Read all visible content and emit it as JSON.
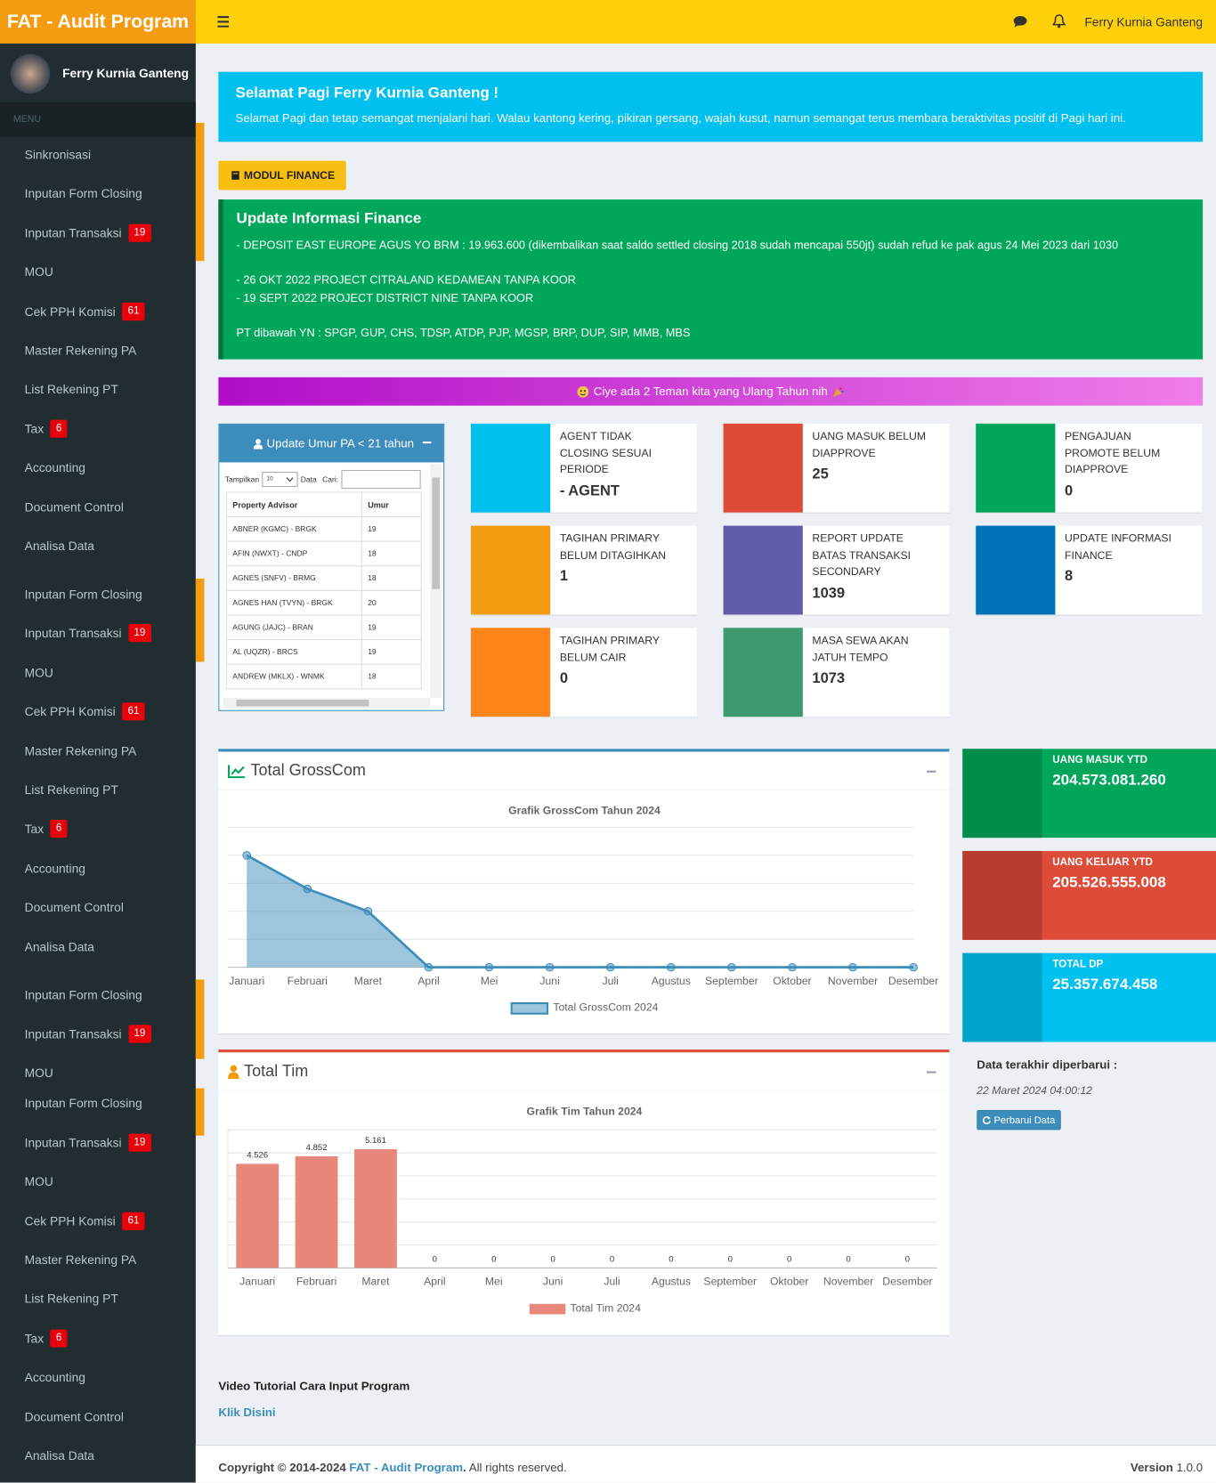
{
  "header": {
    "brand": "FAT - Audit Program",
    "user": "Ferry Kurnia Ganteng"
  },
  "sidebar": {
    "user": "Ferry Kurnia Ganteng",
    "menu_label": "MENU",
    "groups": [
      {
        "items": [
          {
            "label": "Sinkronisasi",
            "arrow": true
          },
          {
            "label": "Inputan Form Closing"
          },
          {
            "label": "Inputan Transaksi",
            "badge": 19,
            "arrow": true
          },
          {
            "label": "MOU",
            "arrow": true
          },
          {
            "label": "Cek PPH Komisi",
            "badge": 61
          },
          {
            "label": "Master Rekening PA"
          },
          {
            "label": "List Rekening PT"
          },
          {
            "label": "Tax",
            "badge": 6,
            "arrow": true
          },
          {
            "label": "Accounting",
            "arrow": true
          },
          {
            "label": "Document Control",
            "arrow": true
          },
          {
            "label": "Analisa Data",
            "arrow": true
          }
        ]
      },
      {
        "items": [
          {
            "label": "Inputan Form Closing"
          },
          {
            "label": "Inputan Transaksi",
            "badge": 19,
            "arrow": true
          },
          {
            "label": "MOU",
            "arrow": true
          },
          {
            "label": "Cek PPH Komisi",
            "badge": 61
          },
          {
            "label": "Master Rekening PA"
          },
          {
            "label": "List Rekening PT"
          },
          {
            "label": "Tax",
            "badge": 6,
            "arrow": true
          },
          {
            "label": "Accounting",
            "arrow": true
          },
          {
            "label": "Document Control",
            "arrow": true
          },
          {
            "label": "Analisa Data",
            "arrow": true
          }
        ]
      },
      {
        "items": [
          {
            "label": "Inputan Form Closing"
          },
          {
            "label": "Inputan Transaksi",
            "badge": 19,
            "arrow": true
          },
          {
            "label": "MOU",
            "arrow": true
          }
        ]
      },
      {
        "items": [
          {
            "label": "Inputan Form Closing"
          },
          {
            "label": "Inputan Transaksi",
            "badge": 19,
            "arrow": true
          },
          {
            "label": "MOU",
            "arrow": true
          },
          {
            "label": "Cek PPH Komisi",
            "badge": 61
          },
          {
            "label": "Master Rekening PA"
          },
          {
            "label": "List Rekening PT"
          },
          {
            "label": "Tax",
            "badge": 6,
            "arrow": true
          },
          {
            "label": "Accounting",
            "arrow": true
          },
          {
            "label": "Document Control",
            "arrow": true
          },
          {
            "label": "Analisa Data",
            "arrow": true
          }
        ]
      }
    ]
  },
  "welcome": {
    "title": "Selamat Pagi Ferry Kurnia Ganteng !",
    "text": "Selamat Pagi dan tetap semangat menjalani hari. Walau kantong kering, pikiran gersang, wajah kusut, namun semangat terus membara beraktivitas positif di Pagi hari ini."
  },
  "module_button": "MODUL FINANCE",
  "finance_info": {
    "title": "Update Informasi Finance",
    "paragraphs": [
      [
        "- DEPOSIT EAST EUROPE AGUS YO BRM : 19.963.600 (dikembalikan saat saldo settled closing 2018 sudah mencapai 550jt) sudah refud ke pak agus 24 Mei 2023 dari 1030"
      ],
      [
        "- 26 OKT 2022 PROJECT CITRALAND KEDAMEAN TANPA KOOR",
        "- 19 SEPT 2022 PROJECT DISTRICT NINE TANPA KOOR"
      ],
      [
        "PT dibawah YN : SPGP, GUP, CHS, TDSP, ATDP, PJP, MGSP, BRP, DUP, SIP, MMB, MBS"
      ]
    ]
  },
  "birthday_banner": "Ciye ada 2 Teman kita yang Ulang Tahun nih",
  "pa_table": {
    "title": "Update Umur PA < 21 tahun",
    "show_label": "Tampilkan",
    "page_size": 10,
    "data_label": "Data",
    "search_label": "Cari:",
    "columns": [
      "Property Advisor",
      "Umur"
    ],
    "rows": [
      [
        "ABNER (KGMC) - BRGK",
        19
      ],
      [
        "AFIN (NWXT) - CNDP",
        18
      ],
      [
        "AGNES (SNFV) - BRMG",
        18
      ],
      [
        "AGNES HAN (TVYN) - BRGK",
        20
      ],
      [
        "AGUNG (JAJC) - BRAN",
        19
      ],
      [
        "AL (UQZR) - BRCS",
        19
      ],
      [
        "ANDREW (MKLX) - WNMK",
        18
      ]
    ]
  },
  "info_boxes": [
    {
      "label": "AGENT TIDAK CLOSING SESUAI PERIODE",
      "value": "- Agent",
      "color": "#00c0ef"
    },
    {
      "label": "UANG MASUK BELUM DIAPPROVE",
      "value": 25,
      "color": "#dd4b39"
    },
    {
      "label": "PENGAJUAN PROMOTE BELUM DIAPPROVE",
      "value": 0,
      "color": "#00a65a"
    },
    {
      "label": "TAGIHAN PRIMARY BELUM DITAGIHKAN",
      "value": 1,
      "color": "#f39c12"
    },
    {
      "label": "REPORT UPDATE BATAS TRANSAKSI SECONDARY",
      "value": 1039,
      "color": "#605ca8"
    },
    {
      "label": "UPDATE INFORMASI FINANCE",
      "value": 8,
      "color": "#0073b7"
    },
    {
      "label": "TAGIHAN PRIMARY BELUM CAIR",
      "value": 0,
      "color": "#ff851b"
    },
    {
      "label": "MASA SEWA AKAN JATUH TEMPO",
      "value": 1073,
      "color": "#3d9970"
    }
  ],
  "grosscom_box": {
    "title": "Total GrossCom"
  },
  "tim_box": {
    "title": "Total Tim"
  },
  "chart_data": [
    {
      "type": "line",
      "title": "Grafik GrossCom Tahun 2024",
      "categories": [
        "Januari",
        "Februari",
        "Maret",
        "April",
        "Mei",
        "Juni",
        "Juli",
        "Agustus",
        "September",
        "Oktober",
        "November",
        "Desember"
      ],
      "series": [
        {
          "name": "Total GrossCom 2024",
          "color": "#3c8dbc",
          "values": [
            4,
            2.8,
            2,
            0,
            0,
            0,
            0,
            0,
            0,
            0,
            0,
            0
          ]
        }
      ],
      "ylim": [
        0,
        5
      ],
      "fill": true,
      "grid": true
    },
    {
      "type": "bar",
      "title": "Grafik Tim Tahun 2024",
      "categories": [
        "Januari",
        "Februari",
        "Maret",
        "April",
        "Mei",
        "Juni",
        "Juli",
        "Agustus",
        "September",
        "Oktober",
        "November",
        "Desember"
      ],
      "series": [
        {
          "name": "Total Tim 2024",
          "color": "#e8877a",
          "values": [
            4526,
            4852,
            5161,
            0,
            0,
            0,
            0,
            0,
            0,
            0,
            0,
            0
          ],
          "value_labels": [
            "4.526",
            "4.852",
            "5.161",
            "0",
            "0",
            "0",
            "0",
            "0",
            "0",
            "0",
            "0",
            "0"
          ]
        }
      ],
      "ylim": [
        0,
        6000
      ],
      "grid": true
    }
  ],
  "ytd_boxes": [
    {
      "label": "UANG MASUK YTD",
      "value": "204.573.081.260",
      "color": "#00a65a",
      "icon_color": "#008d4c"
    },
    {
      "label": "UANG KELUAR YTD",
      "value": "205.526.555.008",
      "color": "#dd4b39",
      "icon_color": "#b83c2e"
    },
    {
      "label": "TOTAL DP",
      "value": "25.357.674.458",
      "color": "#00c0ef",
      "icon_color": "#00a3cc"
    }
  ],
  "last_update": {
    "label": "Data terakhir diperbarui :",
    "time": "22 Maret 2024 04:00:12",
    "button": "Perbarui Data"
  },
  "tutorial": {
    "title": "Video Tutorial Cara Input Program",
    "link": "Klik Disini"
  },
  "footer": {
    "copyright": "Copyright © 2014-2024",
    "link": "FAT - Audit Program",
    "period": ".",
    "rights": "All rights reserved.",
    "version_label": "Version",
    "version": "1.0.0"
  }
}
